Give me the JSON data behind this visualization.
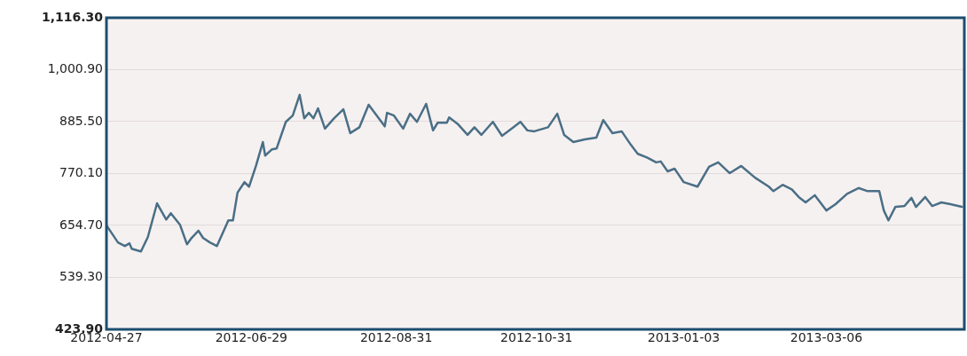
{
  "chart_data": {
    "type": "line",
    "x": [
      "2012-04-27",
      "2012-05-02",
      "2012-05-05",
      "2012-05-07",
      "2012-05-08",
      "2012-05-12",
      "2012-05-15",
      "2012-05-19",
      "2012-05-23",
      "2012-05-25",
      "2012-05-29",
      "2012-06-01",
      "2012-06-03",
      "2012-06-06",
      "2012-06-08",
      "2012-06-11",
      "2012-06-14",
      "2012-06-19",
      "2012-06-21",
      "2012-06-23",
      "2012-06-26",
      "2012-06-28",
      "2012-07-01",
      "2012-07-04",
      "2012-07-05",
      "2012-07-08",
      "2012-07-10",
      "2012-07-14",
      "2012-07-17",
      "2012-07-20",
      "2012-07-22",
      "2012-07-24",
      "2012-07-26",
      "2012-07-28",
      "2012-07-31",
      "2012-08-04",
      "2012-08-08",
      "2012-08-11",
      "2012-08-15",
      "2012-08-19",
      "2012-08-26",
      "2012-08-27",
      "2012-08-30",
      "2012-09-03",
      "2012-09-06",
      "2012-09-09",
      "2012-09-13",
      "2012-09-16",
      "2012-09-18",
      "2012-09-22",
      "2012-09-23",
      "2012-09-27",
      "2012-10-01",
      "2012-10-04",
      "2012-10-07",
      "2012-10-12",
      "2012-10-16",
      "2012-10-21",
      "2012-10-24",
      "2012-10-27",
      "2012-10-30",
      "2012-11-05",
      "2012-11-09",
      "2012-11-12",
      "2012-11-16",
      "2012-11-21",
      "2012-11-26",
      "2012-11-29",
      "2012-12-03",
      "2012-12-07",
      "2012-12-11",
      "2012-12-14",
      "2012-12-18",
      "2012-12-22",
      "2012-12-24",
      "2012-12-27",
      "2012-12-30",
      "2013-01-03",
      "2013-01-09",
      "2013-01-14",
      "2013-01-18",
      "2013-01-23",
      "2013-01-28",
      "2013-02-03",
      "2013-02-09",
      "2013-02-11",
      "2013-02-15",
      "2013-02-19",
      "2013-02-22",
      "2013-02-25",
      "2013-03-01",
      "2013-03-06",
      "2013-03-10",
      "2013-03-15",
      "2013-03-20",
      "2013-03-24",
      "2013-03-29",
      "2013-03-31",
      "2013-04-02",
      "2013-04-05",
      "2013-04-09",
      "2013-04-12",
      "2013-04-14",
      "2013-04-18",
      "2013-04-21",
      "2013-04-25",
      "2013-04-29",
      "2013-05-04"
    ],
    "series": [
      {
        "color": "#4a6f86",
        "values": [
          655,
          617,
          609,
          615,
          603,
          597,
          629,
          704,
          668,
          682,
          656,
          613,
          627,
          643,
          627,
          617,
          609,
          666,
          666,
          728,
          751,
          741,
          787,
          840,
          810,
          824,
          826,
          885,
          899,
          945,
          893,
          905,
          893,
          915,
          870,
          893,
          913,
          860,
          873,
          923,
          875,
          905,
          899,
          870,
          903,
          885,
          925,
          866,
          883,
          883,
          895,
          879,
          856,
          873,
          856,
          885,
          854,
          873,
          885,
          866,
          864,
          873,
          903,
          856,
          840,
          846,
          850,
          889,
          860,
          864,
          834,
          814,
          806,
          795,
          797,
          775,
          781,
          751,
          741,
          785,
          795,
          771,
          787,
          761,
          741,
          731,
          745,
          735,
          718,
          706,
          722,
          688,
          702,
          725,
          738,
          731,
          731,
          688,
          666,
          696,
          698,
          716,
          696,
          718,
          698,
          706,
          702,
          696
        ]
      }
    ],
    "xlim": [
      "2012-04-27",
      "2013-05-05"
    ],
    "xticks": [
      "2012-04-27",
      "2012-06-29",
      "2012-08-31",
      "2012-10-31",
      "2013-01-03",
      "2013-03-06"
    ],
    "ylim": [
      423.9,
      1116.3
    ],
    "yticks": [
      {
        "value": 423.9,
        "label": "423.90"
      },
      {
        "value": 539.3,
        "label": "539.30"
      },
      {
        "value": 654.7,
        "label": "654.70"
      },
      {
        "value": 770.1,
        "label": "770.10"
      },
      {
        "value": 885.5,
        "label": "885.50"
      },
      {
        "value": 1000.9,
        "label": "1,000.90"
      },
      {
        "value": 1116.3,
        "label": "1,116.30"
      }
    ],
    "grid": "y",
    "legend": false,
    "marker": "none",
    "line_style": "solid"
  }
}
